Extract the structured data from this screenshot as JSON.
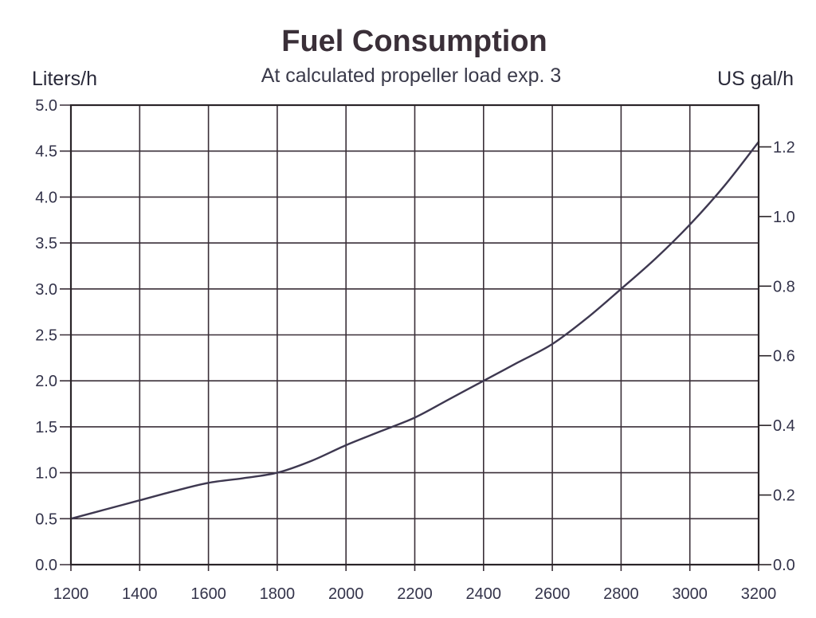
{
  "chart_data": {
    "type": "line",
    "title": "Fuel Consumption",
    "subtitle": "At calculated propeller load exp. 3",
    "ylabel_left": "Liters/h",
    "ylabel_right": "US gal/h",
    "xlim": [
      1200,
      3200
    ],
    "ylim_left": [
      0,
      5
    ],
    "ylim_right": [
      0,
      1.32
    ],
    "x_ticks": [
      "1200",
      "1400",
      "1600",
      "1800",
      "2000",
      "2200",
      "2400",
      "2600",
      "2800",
      "3000",
      "3200"
    ],
    "y_ticks_left": [
      "0.0",
      "0.5",
      "1.0",
      "1.5",
      "2.0",
      "2.5",
      "3.0",
      "3.5",
      "4.0",
      "4.5",
      "5.0"
    ],
    "y_ticks_right": [
      "0.0",
      "0.2",
      "0.4",
      "0.6",
      "0.8",
      "1.0",
      "1.2"
    ],
    "grid": true,
    "series": [
      {
        "x": [
          1200,
          1300,
          1400,
          1500,
          1600,
          1700,
          1800,
          1900,
          2000,
          2100,
          2200,
          2300,
          2400,
          2500,
          2600,
          2700,
          2800,
          2900,
          3000,
          3100,
          3200
        ],
        "values": [
          0.5,
          0.6,
          0.7,
          0.8,
          0.89,
          0.94,
          1.0,
          1.13,
          1.3,
          1.45,
          1.6,
          1.8,
          2.0,
          2.2,
          2.4,
          2.68,
          3.0,
          3.33,
          3.7,
          4.12,
          4.6
        ]
      }
    ]
  }
}
